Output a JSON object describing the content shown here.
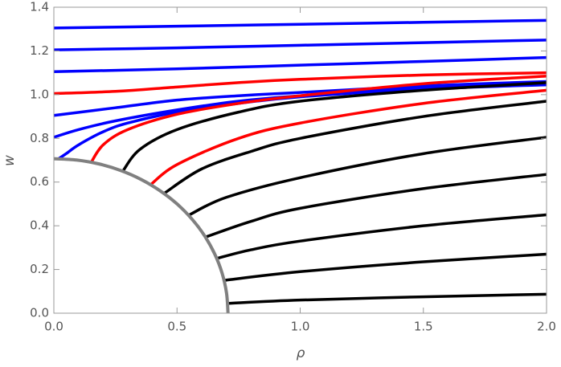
{
  "chart_data": {
    "type": "line",
    "xlabel": "ρ",
    "ylabel": "w",
    "xlim": [
      0,
      2
    ],
    "ylim": [
      0,
      1.4
    ],
    "xticks": [
      {
        "value": 0,
        "label": "0.0"
      },
      {
        "value": 0.5,
        "label": "0.5"
      },
      {
        "value": 1,
        "label": "1.0"
      },
      {
        "value": 1.5,
        "label": "1.5"
      },
      {
        "value": 2,
        "label": "2.0"
      }
    ],
    "yticks": [
      {
        "value": 0,
        "label": "0.0"
      },
      0.2,
      0.4,
      0.6,
      0.8,
      {
        "value": 1,
        "label": "1.0"
      },
      1.2,
      1.4
    ],
    "grid": false,
    "series": [
      {
        "color": "#0000ff",
        "x": [
          0,
          0.5,
          1,
          1.5,
          2
        ],
        "values": [
          1.305,
          1.313,
          1.322,
          1.331,
          1.34
        ]
      },
      {
        "color": "#0000ff",
        "x": [
          0,
          0.5,
          1,
          1.5,
          2
        ],
        "values": [
          1.205,
          1.214,
          1.226,
          1.238,
          1.25
        ]
      },
      {
        "color": "#0000ff",
        "x": [
          0,
          0.5,
          1,
          1.5,
          2
        ],
        "values": [
          1.105,
          1.118,
          1.135,
          1.152,
          1.17
        ]
      },
      {
        "color": "#0000ff",
        "x": [
          0,
          0.25,
          0.5,
          0.75,
          1,
          1.5,
          2
        ],
        "values": [
          0.905,
          0.94,
          0.975,
          0.995,
          1.01,
          1.04,
          1.06
        ]
      },
      {
        "color": "#0000ff",
        "x": [
          0,
          0.1,
          0.25,
          0.5,
          0.75,
          1,
          1.5,
          2
        ],
        "values": [
          0.805,
          0.84,
          0.88,
          0.93,
          0.97,
          0.995,
          1.03,
          1.05
        ]
      },
      {
        "color": "#0000ff",
        "x": [
          0.02,
          0.05,
          0.1,
          0.2,
          0.3,
          0.5,
          0.75,
          1,
          1.5,
          2
        ],
        "values": [
          0.707,
          0.73,
          0.77,
          0.83,
          0.87,
          0.92,
          0.96,
          0.99,
          1.025,
          1.045
        ]
      },
      {
        "color": "#ff0000",
        "x": [
          0,
          0.25,
          0.5,
          0.75,
          1,
          1.5,
          2
        ],
        "values": [
          1.005,
          1.015,
          1.035,
          1.055,
          1.07,
          1.09,
          1.1
        ]
      },
      {
        "color": "#ff0000",
        "x": [
          0.15,
          0.2,
          0.3,
          0.5,
          0.75,
          1,
          1.5,
          2
        ],
        "values": [
          0.687,
          0.77,
          0.84,
          0.91,
          0.96,
          0.995,
          1.05,
          1.085
        ]
      },
      {
        "color": "#ff0000",
        "x": [
          0.39,
          0.5,
          0.75,
          1,
          1.5,
          2
        ],
        "values": [
          0.585,
          0.68,
          0.8,
          0.87,
          0.96,
          1.02
        ]
      },
      {
        "color": "#000000",
        "x": [
          0.28,
          0.35,
          0.5,
          0.75,
          1,
          1.5,
          2
        ],
        "values": [
          0.65,
          0.75,
          0.84,
          0.92,
          0.97,
          1.02,
          1.055
        ]
      },
      {
        "color": "#000000",
        "x": [
          0.45,
          0.6,
          0.8,
          1,
          1.5,
          2
        ],
        "values": [
          0.55,
          0.66,
          0.74,
          0.8,
          0.9,
          0.97
        ]
      },
      {
        "color": "#000000",
        "x": [
          0.55,
          0.7,
          1,
          1.5,
          2
        ],
        "values": [
          0.45,
          0.53,
          0.62,
          0.73,
          0.805
        ]
      },
      {
        "color": "#000000",
        "x": [
          0.62,
          0.8,
          1,
          1.5,
          2
        ],
        "values": [
          0.35,
          0.42,
          0.48,
          0.57,
          0.635
        ]
      },
      {
        "color": "#000000",
        "x": [
          0.66,
          0.8,
          1,
          1.5,
          2
        ],
        "values": [
          0.25,
          0.29,
          0.33,
          0.4,
          0.45
        ]
      },
      {
        "color": "#000000",
        "x": [
          0.69,
          1,
          1.5,
          2
        ],
        "values": [
          0.15,
          0.19,
          0.235,
          0.27
        ]
      },
      {
        "color": "#000000",
        "x": [
          0.705,
          1,
          1.5,
          2
        ],
        "values": [
          0.045,
          0.06,
          0.075,
          0.087
        ]
      }
    ],
    "arc": {
      "color": "#808080",
      "x": [
        0.707,
        0.701,
        0.683,
        0.653,
        0.612,
        0.561,
        0.5,
        0.43,
        0.354,
        0.271,
        0.183,
        0.092,
        0
      ],
      "values": [
        0,
        0.092,
        0.183,
        0.271,
        0.354,
        0.43,
        0.5,
        0.561,
        0.612,
        0.653,
        0.683,
        0.701,
        0.707
      ]
    }
  }
}
